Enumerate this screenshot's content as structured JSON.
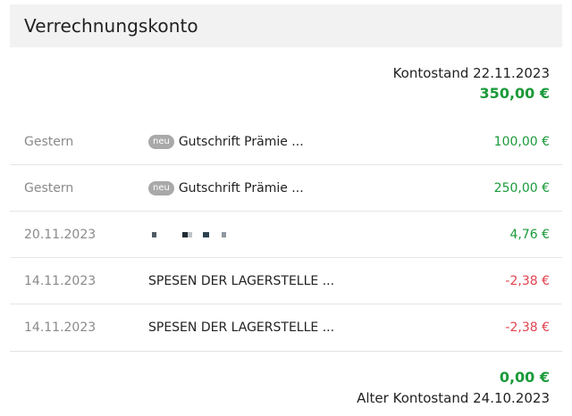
{
  "header": {
    "title": "Verrechnungskonto"
  },
  "current_balance": {
    "label": "Kontostand 22.11.2023",
    "amount": "350,00 €",
    "color": "#1a9a3a"
  },
  "transactions": [
    {
      "date": "Gestern",
      "badge": "neu",
      "description": "Gutschrift Prämie ...",
      "amount": "100,00 €",
      "sign": "positive"
    },
    {
      "date": "Gestern",
      "badge": "neu",
      "description": "Gutschrift Prämie ...",
      "amount": "250,00 €",
      "sign": "positive"
    },
    {
      "date": "20.11.2023",
      "badge": "",
      "description": "",
      "masked": true,
      "amount": "4,76 €",
      "sign": "positive"
    },
    {
      "date": "14.11.2023",
      "badge": "",
      "description": "SPESEN DER LAGERSTELLE ...",
      "amount": "-2,38 €",
      "sign": "negative"
    },
    {
      "date": "14.11.2023",
      "badge": "",
      "description": "SPESEN DER LAGERSTELLE ...",
      "amount": "-2,38 €",
      "sign": "negative"
    }
  ],
  "old_balance": {
    "amount": "0,00 €",
    "label": "Alter Kontostand 24.10.2023"
  },
  "colors": {
    "positive": "#1a9a3a",
    "negative": "#e2434f",
    "header_bg": "#f2f2f2",
    "badge_bg": "#a9a9a9"
  }
}
